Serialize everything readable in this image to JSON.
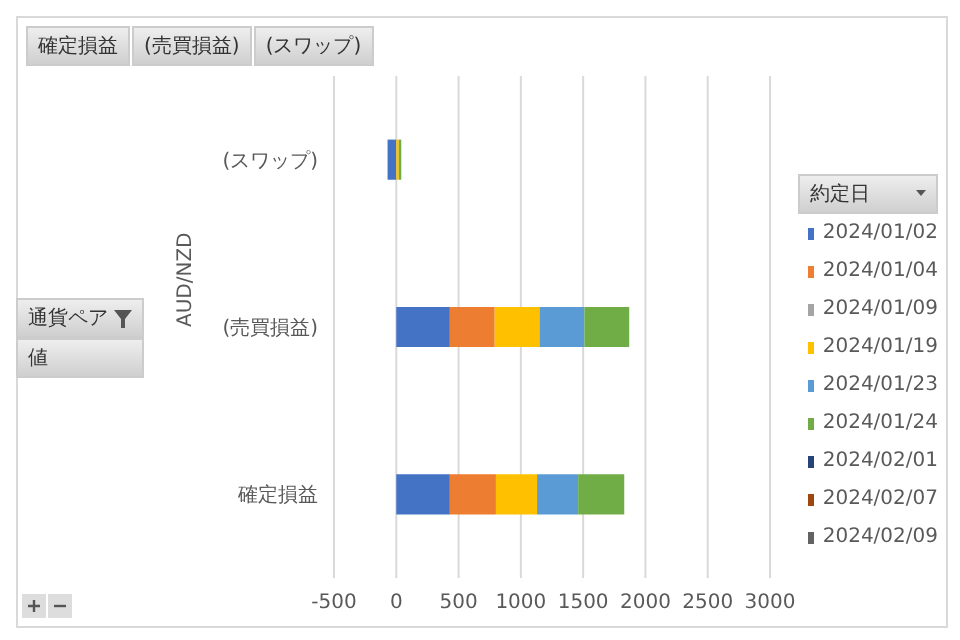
{
  "chart_data": {
    "type": "bar",
    "orientation": "horizontal",
    "stacked": true,
    "categories": [
      "(スワップ)",
      "(売買損益)",
      "確定損益"
    ],
    "ylabel": "AUD/NZD",
    "legend_title": "約定日",
    "annotations": [
      "確定損益",
      "(売買損益)",
      "(スワップ)",
      "通貨ペア",
      "値"
    ],
    "series": [
      {
        "name": "2024/01/02",
        "color": "#4472c4",
        "values": [
          -70,
          430,
          430
        ]
      },
      {
        "name": "2024/01/04",
        "color": "#ed7d31",
        "values": [
          null,
          360,
          370
        ]
      },
      {
        "name": "2024/01/09",
        "color": "#a5a5a5",
        "values": [
          null,
          null,
          null
        ]
      },
      {
        "name": "2024/01/19",
        "color": "#ffc000",
        "values": [
          20,
          360,
          330
        ]
      },
      {
        "name": "2024/01/23",
        "color": "#5b9bd5",
        "values": [
          null,
          360,
          330
        ]
      },
      {
        "name": "2024/01/24",
        "color": "#70ad47",
        "values": [
          20,
          360,
          370
        ]
      },
      {
        "name": "2024/02/01",
        "color": "#264478",
        "values": [
          null,
          null,
          null
        ]
      },
      {
        "name": "2024/02/07",
        "color": "#9e480e",
        "values": [
          null,
          null,
          null
        ]
      },
      {
        "name": "2024/02/09",
        "color": "#636363",
        "values": [
          null,
          null,
          null
        ]
      }
    ],
    "xlim": [
      -500,
      3000
    ],
    "xticks": [
      -500,
      0,
      500,
      1000,
      1500,
      2000,
      2500,
      3000
    ],
    "grid": "x",
    "legend": "right"
  }
}
